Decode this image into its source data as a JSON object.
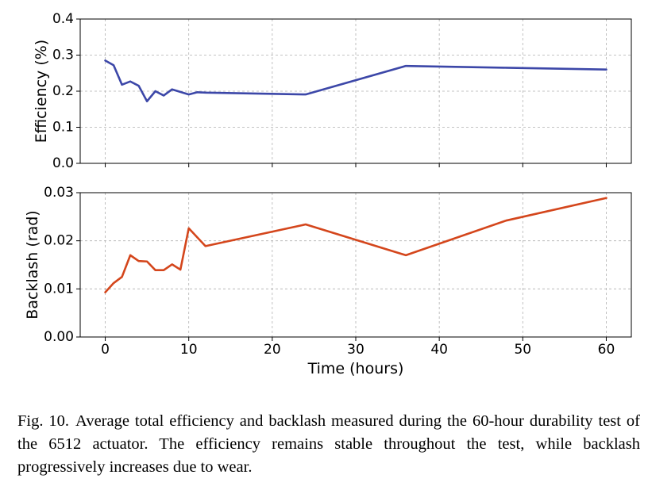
{
  "chart_data": [
    {
      "type": "line",
      "ylabel": "Efficiency (%)",
      "xlabel": "",
      "ylim": [
        0.0,
        0.4
      ],
      "xlim": [
        -3,
        63
      ],
      "yticks": [
        "0.0",
        "0.1",
        "0.2",
        "0.3",
        "0.4"
      ],
      "ytick_values": [
        0.0,
        0.1,
        0.2,
        0.3,
        0.4
      ],
      "xtick_values": [
        0,
        10,
        20,
        30,
        40,
        50,
        60
      ],
      "grid": true,
      "series": [
        {
          "name": "Efficiency",
          "color": "#3c47a8",
          "x": [
            0,
            1,
            2,
            3,
            4,
            5,
            6,
            7,
            8,
            10,
            11,
            12,
            24,
            36,
            48,
            60
          ],
          "y": [
            0.285,
            0.272,
            0.218,
            0.227,
            0.215,
            0.172,
            0.2,
            0.188,
            0.205,
            0.191,
            0.197,
            0.196,
            0.191,
            0.27,
            0.265,
            0.26
          ]
        }
      ]
    },
    {
      "type": "line",
      "ylabel": "Backlash (rad)",
      "xlabel": "Time (hours)",
      "ylim": [
        0.0,
        0.03
      ],
      "xlim": [
        -3,
        63
      ],
      "yticks": [
        "0.00",
        "0.01",
        "0.02",
        "0.03"
      ],
      "ytick_values": [
        0.0,
        0.01,
        0.02,
        0.03
      ],
      "xticks": [
        "0",
        "10",
        "20",
        "30",
        "40",
        "50",
        "60"
      ],
      "xtick_values": [
        0,
        10,
        20,
        30,
        40,
        50,
        60
      ],
      "grid": true,
      "series": [
        {
          "name": "Backlash",
          "color": "#d4461c",
          "x": [
            0,
            1,
            2,
            3,
            4,
            5,
            6,
            7,
            8,
            9,
            10,
            12,
            24,
            36,
            48,
            60
          ],
          "y": [
            0.0093,
            0.0112,
            0.0125,
            0.017,
            0.0158,
            0.0157,
            0.0139,
            0.0139,
            0.0151,
            0.014,
            0.0226,
            0.0189,
            0.0234,
            0.017,
            0.0242,
            0.0289
          ]
        }
      ]
    }
  ],
  "caption": {
    "label": "Fig. 10.",
    "text": "Average total efficiency and backlash measured during the 60-hour durability test of the 6512 actuator. The efficiency remains stable throughout the test, while backlash progressively increases due to wear."
  }
}
